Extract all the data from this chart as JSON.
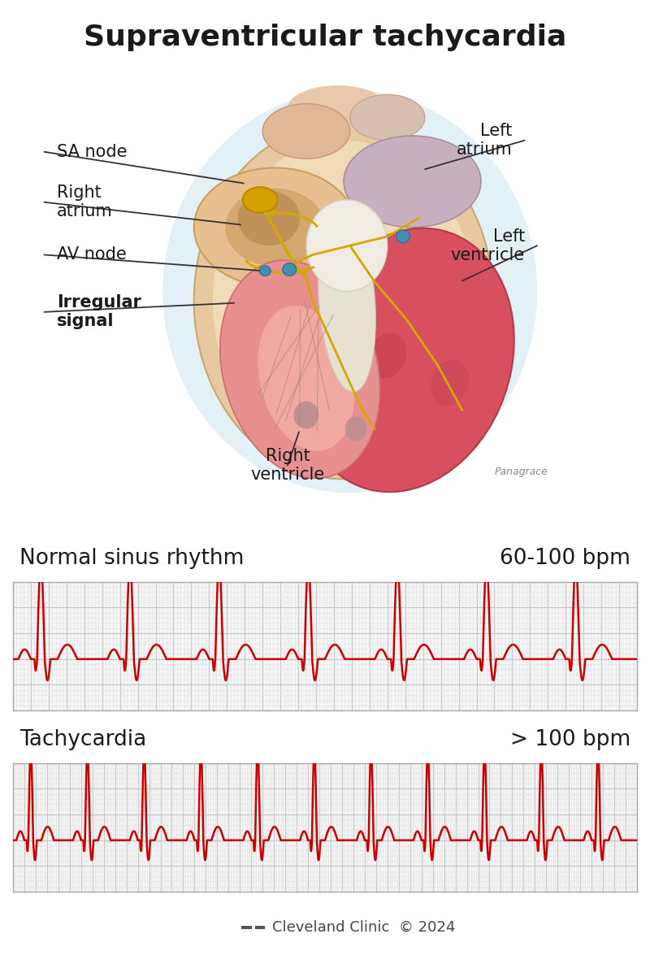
{
  "title": "Supraventricular tachycardia",
  "title_fontsize": 26,
  "title_fontweight": "bold",
  "title_color": "#1a1a1a",
  "bg_color": "#ffffff",
  "ecg_color": "#cc0000",
  "grid_color_major": "#c8c8c8",
  "grid_color_minor": "#e4e4e4",
  "ecg_bg_color": "#f5f5f5",
  "normal_label": "Normal sinus rhythm",
  "normal_bpm": "60-100 bpm",
  "tachy_label": "Tachycardia",
  "tachy_bpm": "> 100 bpm",
  "ecg_label_fontsize": 19,
  "bpm_fontsize": 19,
  "heart_label_fontsize": 15,
  "footer_text": "Cleveland Clinic  © 2024",
  "footer_fontsize": 13,
  "heart_bg_color": "#cde4f0",
  "heart_outer_color": "#e8c8a0",
  "heart_outer2_color": "#d4b080",
  "ra_color": "#e8c090",
  "la_color": "#c8a8b8",
  "lv_color": "#d85060",
  "rv_color": "#e89090",
  "septum_color": "#e0d8d0",
  "sa_node_color": "#c89000",
  "av_node_color": "#3080a0",
  "pathway_color": "#d4a800",
  "label_arrow_color": "#222222",
  "signature_color": "#888888",
  "label_color": "#1a1a1a",
  "irregular_label_color": "#1a1a1a"
}
